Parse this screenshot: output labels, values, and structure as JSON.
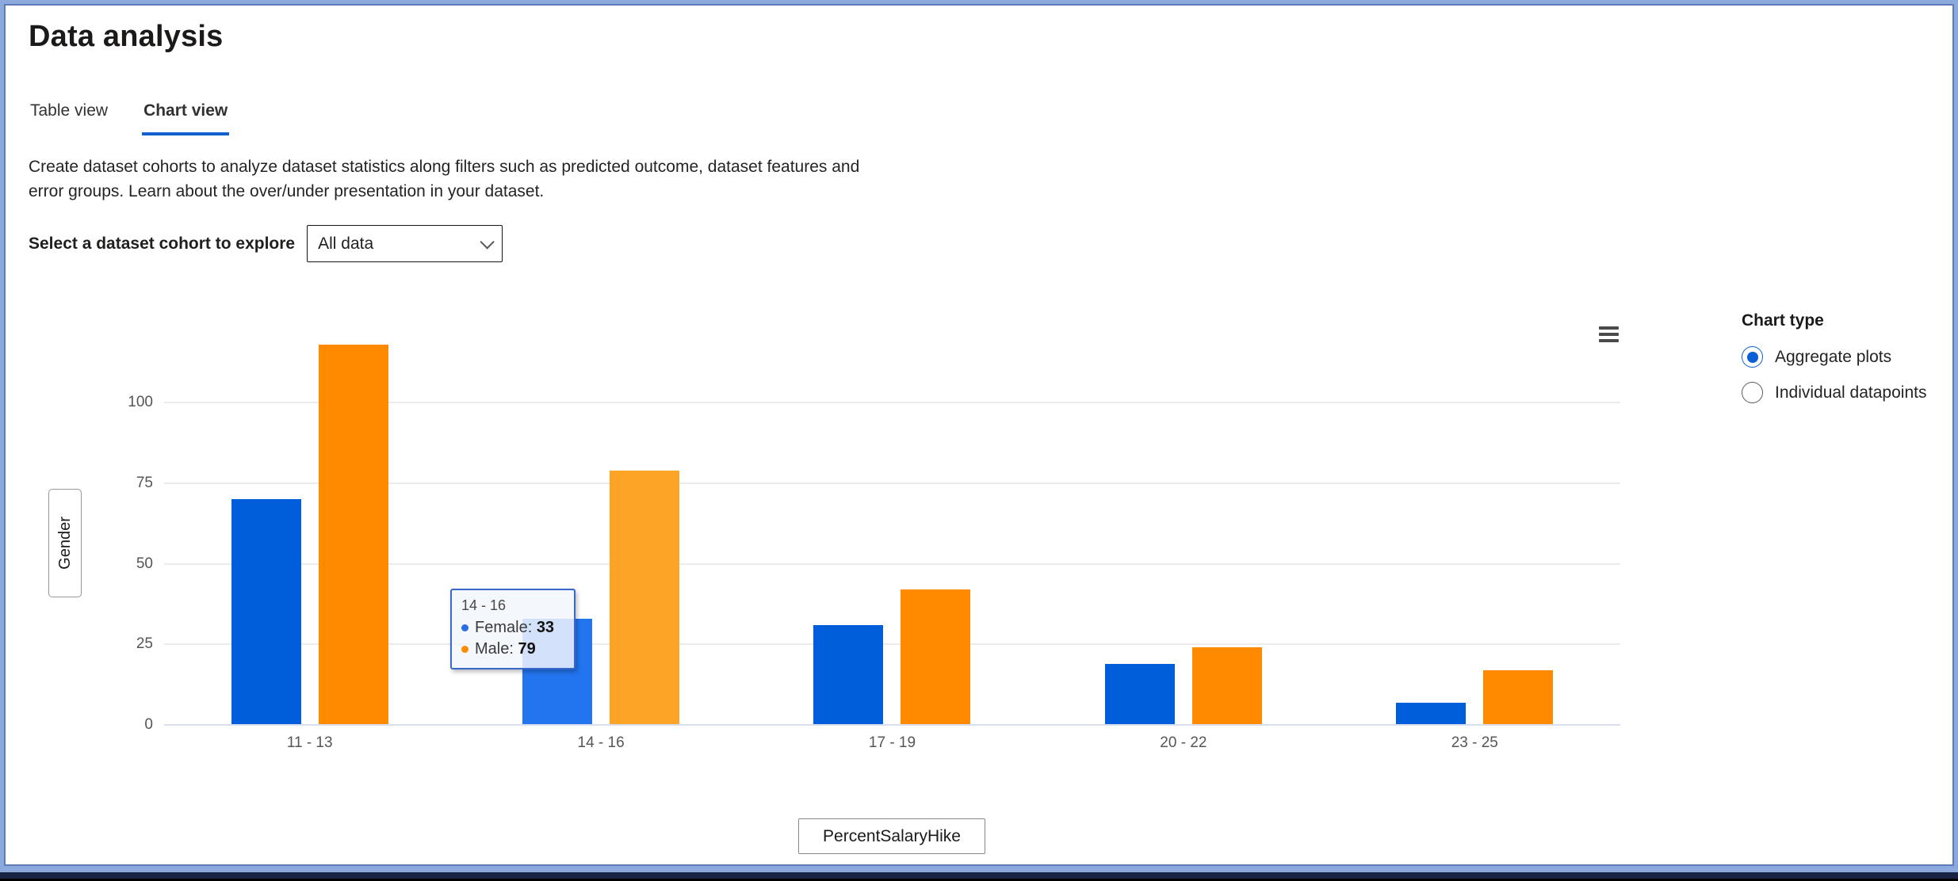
{
  "header": {
    "title": "Data analysis"
  },
  "tabs": [
    {
      "label": "Table view",
      "active": false
    },
    {
      "label": "Chart view",
      "active": true
    }
  ],
  "description": "Create dataset cohorts to analyze dataset statistics along filters such as predicted outcome, dataset features and error groups. Learn about the over/under presentation in your dataset.",
  "cohort": {
    "label": "Select a dataset cohort to explore",
    "selected_value": "All data"
  },
  "icons": {
    "chart_menu": "hamburger-menu-icon",
    "cohort_dropdown": "chevron-down-icon"
  },
  "colors": {
    "tab_underline": "#1160d2",
    "female": "#005EDB",
    "male": "#FF8A00",
    "female_hover": "#2374EF",
    "male_hover": "#FDA326",
    "tooltip_border": "#3A67CB",
    "radio_selected": "#0B5FD7"
  },
  "tooltip": {
    "category": "14 - 16",
    "rows": [
      {
        "series": "Female:",
        "value": "33",
        "color": "#2B6BE4"
      },
      {
        "series": "Male:",
        "value": "79",
        "color": "#FF8A00"
      }
    ]
  },
  "chart_type": {
    "title": "Chart type",
    "options": [
      {
        "label": "Aggregate plots",
        "selected": true
      },
      {
        "label": "Individual datapoints",
        "selected": false
      }
    ]
  },
  "chart_data": {
    "type": "bar",
    "categories": [
      "11 - 13",
      "14 - 16",
      "17 - 19",
      "20 - 22",
      "23 - 25"
    ],
    "series": [
      {
        "name": "Female",
        "values": [
          70,
          33,
          31,
          19,
          7
        ]
      },
      {
        "name": "Male",
        "values": [
          118,
          79,
          42,
          24,
          17
        ]
      }
    ],
    "title": "",
    "xlabel": "PercentSalaryHike",
    "ylabel": "Gender",
    "yticks": [
      0,
      25,
      50,
      75,
      100
    ],
    "ylim": [
      0,
      120
    ],
    "grid": true,
    "legend": "none",
    "hovered_category": "14 - 16"
  }
}
